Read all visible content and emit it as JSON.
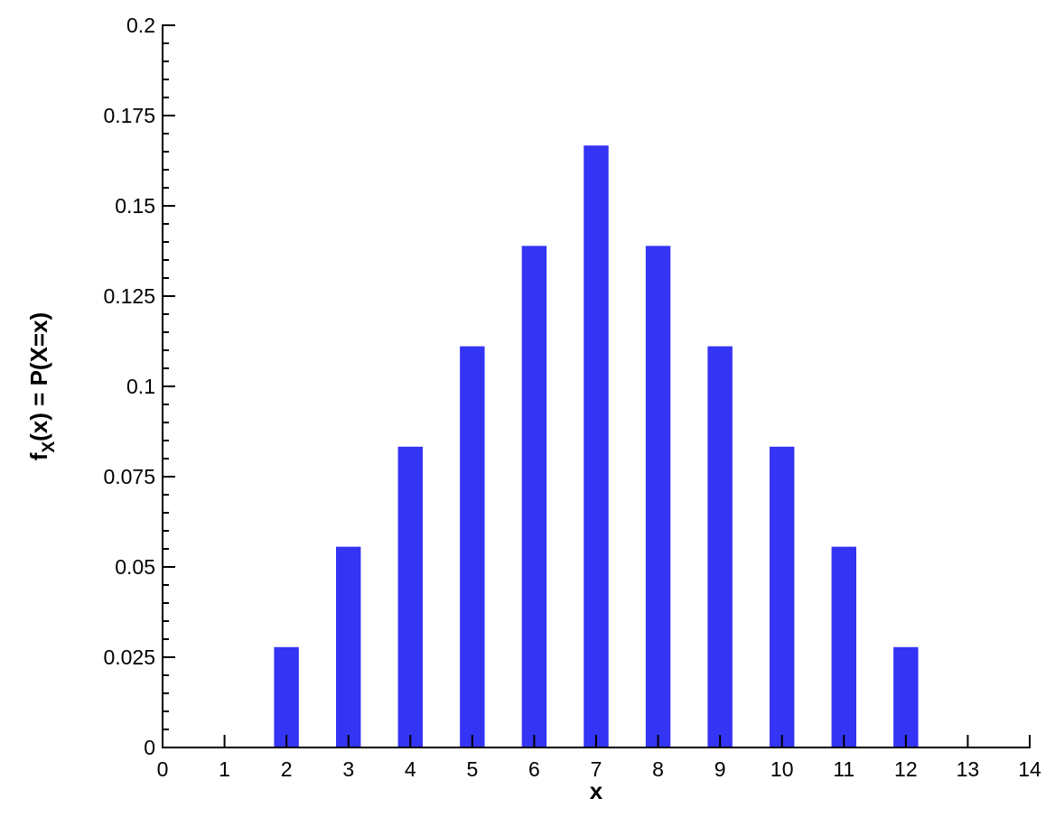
{
  "chart_data": {
    "type": "bar",
    "x_label": "x",
    "y_label": [
      "f",
      "X",
      "(x) = P(X=x)"
    ],
    "x": [
      2,
      3,
      4,
      5,
      6,
      7,
      8,
      9,
      10,
      11,
      12
    ],
    "values": [
      0.0278,
      0.0556,
      0.0833,
      0.1111,
      0.1389,
      0.1667,
      0.1389,
      0.1111,
      0.0833,
      0.0556,
      0.0278
    ],
    "color": "#3434f4",
    "xlim": [
      0,
      14
    ],
    "xticks": [
      0,
      1,
      2,
      3,
      4,
      5,
      6,
      7,
      8,
      9,
      10,
      11,
      12,
      13,
      14
    ],
    "ylim": [
      0,
      0.2
    ],
    "yticks": [
      0,
      0.025,
      0.05,
      0.075,
      0.1,
      0.125,
      0.15,
      0.175,
      0.2
    ],
    "grid": false
  }
}
